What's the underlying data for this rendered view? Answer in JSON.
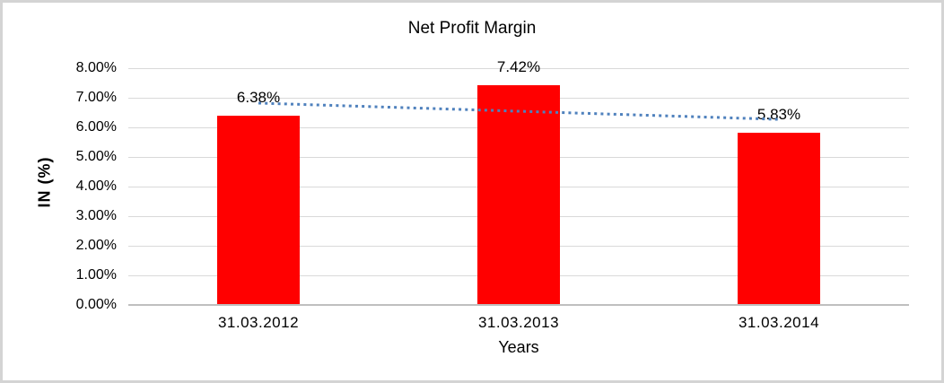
{
  "window": {
    "background_color": "#ffffff",
    "border_color": "#d4d4d4"
  },
  "chart_data": {
    "type": "bar",
    "title": "Net Profit Margin",
    "xlabel": "Years",
    "ylabel": "IN (%)",
    "categories": [
      "31.03.2012",
      "31.03.2013",
      "31.03.2014"
    ],
    "values": [
      6.38,
      7.42,
      5.83
    ],
    "value_labels": [
      "6.38%",
      "7.42%",
      "5.83%"
    ],
    "y_ticks": [
      "0.00%",
      "1.00%",
      "2.00%",
      "3.00%",
      "4.00%",
      "5.00%",
      "6.00%",
      "7.00%",
      "8.00%"
    ],
    "ylim": [
      0,
      8
    ],
    "grid": true,
    "legend": "none",
    "bar_color": "#ff0000",
    "gridline_color": "#d9d9d9",
    "axis_line_color": "#bfbfbf",
    "text_color": "#000000",
    "trendline": {
      "type": "linear",
      "style": "dotted",
      "color": "#4f81bd",
      "start_value": 6.82,
      "end_value": 6.27
    }
  }
}
